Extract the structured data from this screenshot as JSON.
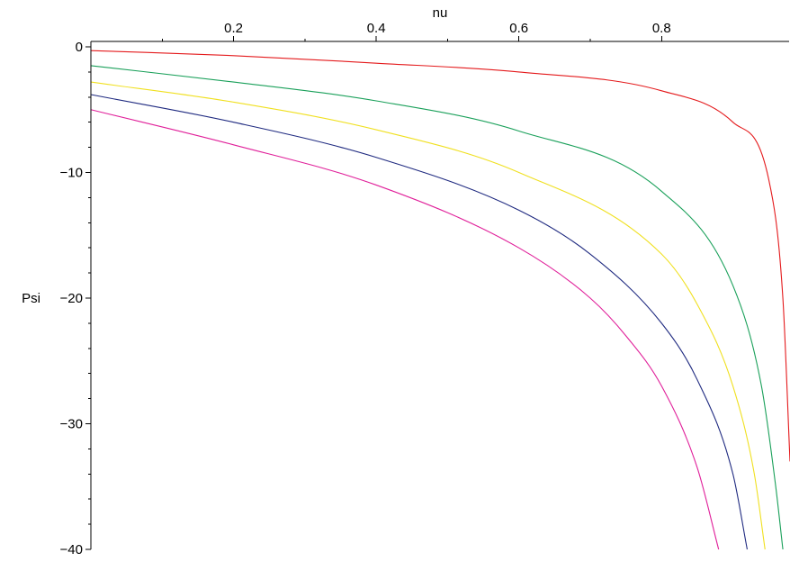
{
  "chart_data": {
    "type": "line",
    "title": "",
    "xlabel": "nu",
    "ylabel": "Psi",
    "xlim": [
      0,
      0.98
    ],
    "ylim": [
      -40,
      0
    ],
    "x_ticks": [
      0.2,
      0.4,
      0.6,
      0.8
    ],
    "x_tick_labels": [
      "0.2",
      "0.4",
      "0.6",
      "0.8"
    ],
    "y_ticks": [
      0,
      -10,
      -20,
      -30,
      -40
    ],
    "y_tick_labels": [
      "0",
      "−10",
      "−20",
      "−30",
      "−40"
    ],
    "grid": false,
    "x_axis_position": "top",
    "series": [
      {
        "color": "#e41a1c",
        "x": [
          0,
          0.2,
          0.4,
          0.6,
          0.8,
          0.9,
          0.95,
          0.97,
          0.98
        ],
        "y": [
          -0.3,
          -0.7,
          -1.3,
          -2.0,
          -3.5,
          -6.0,
          -10.5,
          -20.0,
          -33.0
        ]
      },
      {
        "color": "#1aa05a",
        "x": [
          0,
          0.2,
          0.4,
          0.6,
          0.8,
          0.9,
          0.94,
          0.96,
          0.97
        ],
        "y": [
          -1.5,
          -2.8,
          -4.3,
          -6.7,
          -11.5,
          -19.0,
          -27.0,
          -35.0,
          -40.0
        ]
      },
      {
        "color": "#f0e020",
        "x": [
          0,
          0.2,
          0.4,
          0.6,
          0.8,
          0.85,
          0.9,
          0.93,
          0.945
        ],
        "y": [
          -2.8,
          -4.4,
          -6.6,
          -10.0,
          -16.5,
          -20.5,
          -27.0,
          -34.0,
          -40.0
        ]
      },
      {
        "color": "#1f2a80",
        "x": [
          0,
          0.2,
          0.4,
          0.6,
          0.7,
          0.8,
          0.85,
          0.9,
          0.92
        ],
        "y": [
          -3.8,
          -6.0,
          -8.8,
          -13.0,
          -16.5,
          -22.0,
          -26.5,
          -34.0,
          -40.0
        ]
      },
      {
        "color": "#e0209a",
        "x": [
          0,
          0.2,
          0.4,
          0.6,
          0.7,
          0.75,
          0.8,
          0.85,
          0.88
        ],
        "y": [
          -5.0,
          -7.8,
          -11.0,
          -16.0,
          -20.0,
          -23.0,
          -27.0,
          -33.5,
          -40.0
        ]
      }
    ]
  }
}
